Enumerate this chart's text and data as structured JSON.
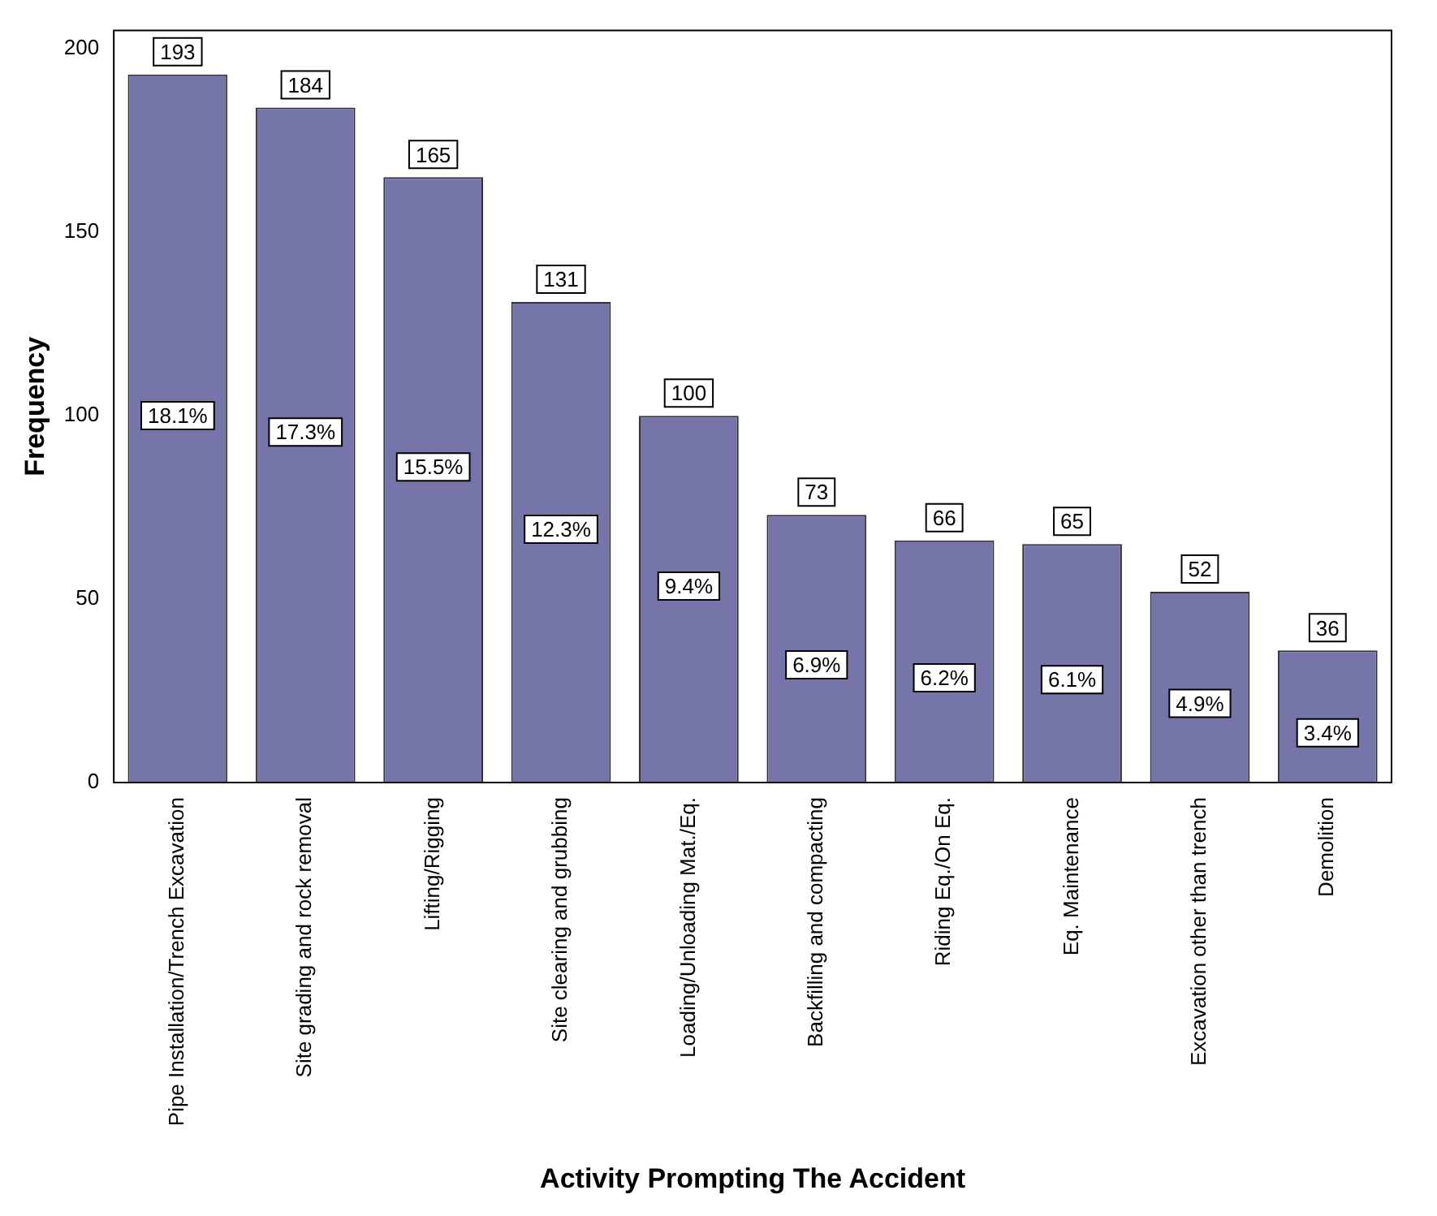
{
  "chart_data": {
    "type": "bar",
    "xlabel": "Activity Prompting The Accident",
    "ylabel": "Frequency",
    "categories": [
      "Pipe Installation/Trench Excavation",
      "Site grading and rock removal",
      "Lifting/Rigging",
      "Site clearing and grubbing",
      "Loading/Unloading Mat./Eq.",
      "Backfilling and compacting",
      "Riding Eq./On Eq.",
      "Eq. Maintenance",
      "Excavation other than trench",
      "Demolition"
    ],
    "values": [
      193,
      184,
      165,
      131,
      100,
      73,
      66,
      65,
      52,
      36
    ],
    "color": "#7575a9",
    "data_labels": true,
    "ylim": [
      0,
      205
    ],
    "yticks": [
      0,
      50,
      100,
      150,
      200
    ],
    "grid": false,
    "legend": false,
    "annotations": [
      "18.1%",
      "17.3%",
      "15.5%",
      "12.3%",
      "9.4%",
      "6.9%",
      "6.2%",
      "6.1%",
      "4.9%",
      "3.4%"
    ]
  }
}
